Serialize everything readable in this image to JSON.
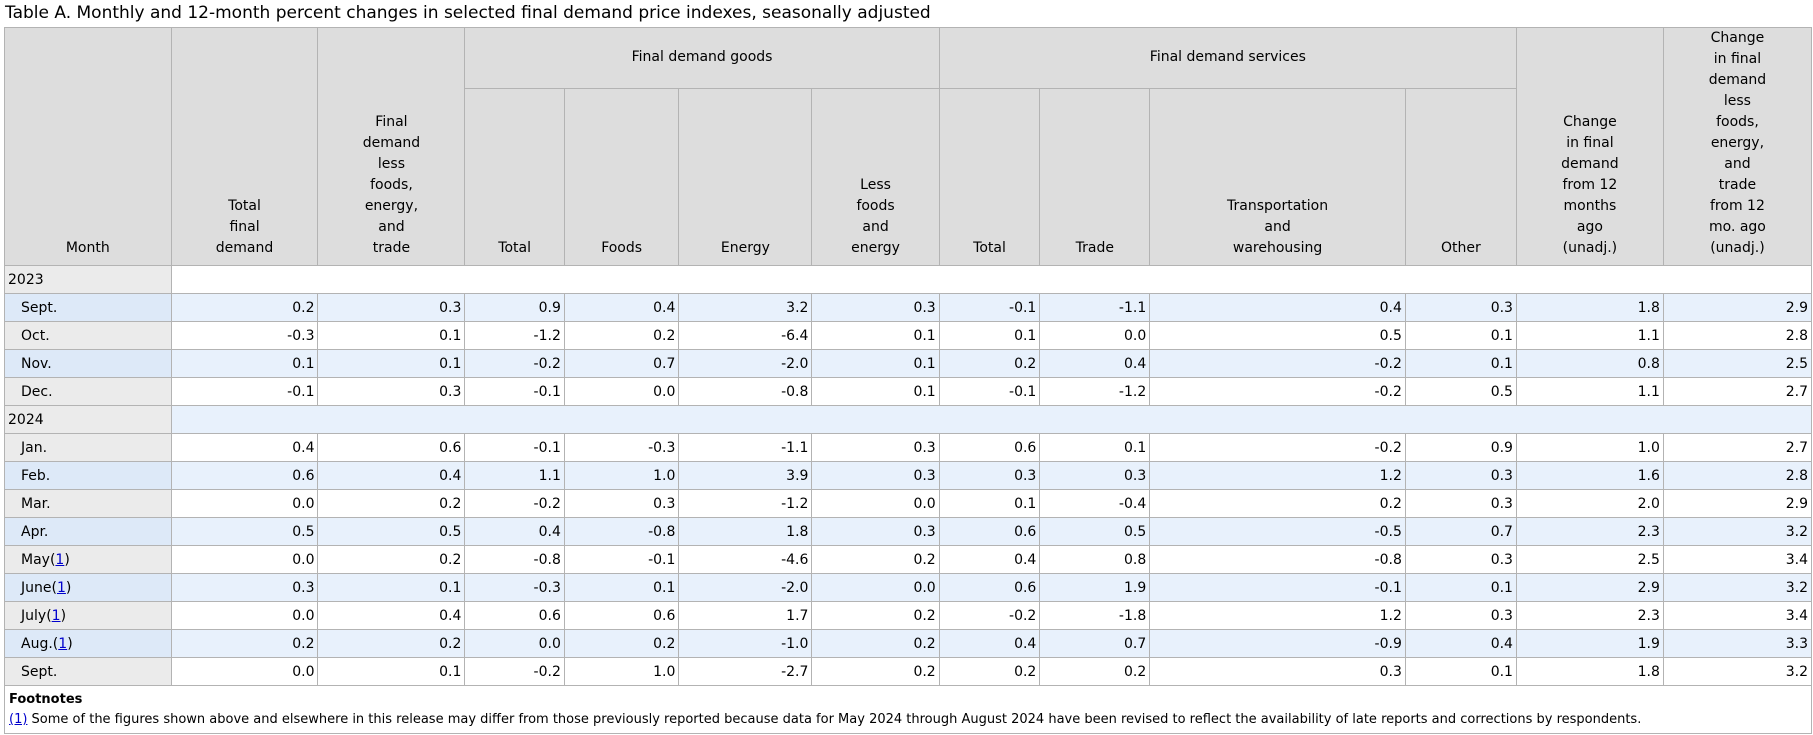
{
  "caption": "Table A. Monthly and 12-month percent changes in selected final demand price indexes, seasonally adjusted",
  "headers": {
    "month": "Month",
    "total_final_demand": [
      "Total",
      "final",
      "demand"
    ],
    "fd_less": [
      "Final",
      "demand",
      "less",
      "foods,",
      "energy,",
      "and",
      "trade"
    ],
    "goods_group": "Final demand goods",
    "services_group": "Final demand services",
    "goods_total": [
      "Total"
    ],
    "goods_foods": [
      "Foods"
    ],
    "goods_energy": [
      "Energy"
    ],
    "goods_less": [
      "Less",
      "foods",
      "and",
      "energy"
    ],
    "svc_total": [
      "Total"
    ],
    "svc_trade": [
      "Trade"
    ],
    "svc_transport": [
      "Transportation",
      "and",
      "warehousing"
    ],
    "svc_other": [
      "Other"
    ],
    "change_fd": [
      "Change",
      "in final",
      "demand",
      "from 12",
      "months",
      "ago",
      "(unadj.)"
    ],
    "change_fd_less": [
      "Change",
      "in final",
      "demand",
      "less",
      "foods,",
      "energy,",
      "and",
      "trade",
      "from 12",
      "mo. ago",
      "(unadj.)"
    ]
  },
  "rows": [
    {
      "type": "year",
      "label": "2023"
    },
    {
      "type": "data",
      "label": "Sept.",
      "fn": "",
      "values": [
        "0.2",
        "0.3",
        "0.9",
        "0.4",
        "3.2",
        "0.3",
        "-0.1",
        "-1.1",
        "0.4",
        "0.3",
        "1.8",
        "2.9"
      ]
    },
    {
      "type": "data",
      "label": "Oct.",
      "fn": "",
      "values": [
        "-0.3",
        "0.1",
        "-1.2",
        "0.2",
        "-6.4",
        "0.1",
        "0.1",
        "0.0",
        "0.5",
        "0.1",
        "1.1",
        "2.8"
      ]
    },
    {
      "type": "data",
      "label": "Nov.",
      "fn": "",
      "values": [
        "0.1",
        "0.1",
        "-0.2",
        "0.7",
        "-2.0",
        "0.1",
        "0.2",
        "0.4",
        "-0.2",
        "0.1",
        "0.8",
        "2.5"
      ]
    },
    {
      "type": "data",
      "label": "Dec.",
      "fn": "",
      "values": [
        "-0.1",
        "0.3",
        "-0.1",
        "0.0",
        "-0.8",
        "0.1",
        "-0.1",
        "-1.2",
        "-0.2",
        "0.5",
        "1.1",
        "2.7"
      ]
    },
    {
      "type": "year",
      "label": "2024"
    },
    {
      "type": "data",
      "label": "Jan.",
      "fn": "",
      "values": [
        "0.4",
        "0.6",
        "-0.1",
        "-0.3",
        "-1.1",
        "0.3",
        "0.6",
        "0.1",
        "-0.2",
        "0.9",
        "1.0",
        "2.7"
      ]
    },
    {
      "type": "data",
      "label": "Feb.",
      "fn": "",
      "values": [
        "0.6",
        "0.4",
        "1.1",
        "1.0",
        "3.9",
        "0.3",
        "0.3",
        "0.3",
        "1.2",
        "0.3",
        "1.6",
        "2.8"
      ]
    },
    {
      "type": "data",
      "label": "Mar.",
      "fn": "",
      "values": [
        "0.0",
        "0.2",
        "-0.2",
        "0.3",
        "-1.2",
        "0.0",
        "0.1",
        "-0.4",
        "0.2",
        "0.3",
        "2.0",
        "2.9"
      ]
    },
    {
      "type": "data",
      "label": "Apr.",
      "fn": "",
      "values": [
        "0.5",
        "0.5",
        "0.4",
        "-0.8",
        "1.8",
        "0.3",
        "0.6",
        "0.5",
        "-0.5",
        "0.7",
        "2.3",
        "3.2"
      ]
    },
    {
      "type": "data",
      "label": "May",
      "fn": "1",
      "values": [
        "0.0",
        "0.2",
        "-0.8",
        "-0.1",
        "-4.6",
        "0.2",
        "0.4",
        "0.8",
        "-0.8",
        "0.3",
        "2.5",
        "3.4"
      ]
    },
    {
      "type": "data",
      "label": "June",
      "fn": "1",
      "values": [
        "0.3",
        "0.1",
        "-0.3",
        "0.1",
        "-2.0",
        "0.0",
        "0.6",
        "1.9",
        "-0.1",
        "0.1",
        "2.9",
        "3.2"
      ]
    },
    {
      "type": "data",
      "label": "July",
      "fn": "1",
      "values": [
        "0.0",
        "0.4",
        "0.6",
        "0.6",
        "1.7",
        "0.2",
        "-0.2",
        "-1.8",
        "1.2",
        "0.3",
        "2.3",
        "3.4"
      ]
    },
    {
      "type": "data",
      "label": "Aug.",
      "fn": "1",
      "values": [
        "0.2",
        "0.2",
        "0.0",
        "0.2",
        "-1.0",
        "0.2",
        "0.4",
        "0.7",
        "-0.9",
        "0.4",
        "1.9",
        "3.3"
      ]
    },
    {
      "type": "data",
      "label": "Sept.",
      "fn": "",
      "values": [
        "0.0",
        "0.1",
        "-0.2",
        "1.0",
        "-2.7",
        "0.2",
        "0.2",
        "0.2",
        "0.3",
        "0.1",
        "1.8",
        "3.2"
      ]
    }
  ],
  "footnotes": {
    "title": "Footnotes",
    "items": [
      {
        "marker": "(1)",
        "text": " Some of the figures shown above and elsewhere in this release may differ from those previously reported because data for May 2024 through August 2024 have been revised to reflect the availability of late reports and corrections by respondents."
      }
    ]
  }
}
